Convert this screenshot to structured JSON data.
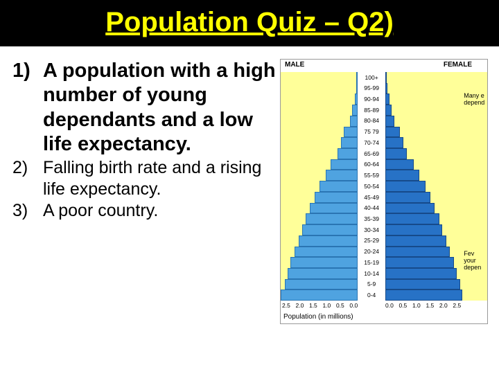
{
  "title": "Population Quiz – Q2)",
  "questions": [
    {
      "num": "1)",
      "text": "A population with a high number of young dependants and a low life expectancy.",
      "bold": true
    },
    {
      "num": "2)",
      "text": "Falling birth rate and a rising life expectancy.",
      "bold": false
    },
    {
      "num": "3)",
      "text": "A poor country.",
      "bold": false
    }
  ],
  "chart": {
    "male_label": "MALE",
    "female_label": "FEMALE",
    "side_text_top": "Many e\ndepend",
    "side_text_bot": "Fev\nyour\ndepen",
    "age_bands": [
      "100+",
      "95-99",
      "90-94",
      "85-89",
      "80-84",
      "75 79",
      "70-74",
      "65-69",
      "60-64",
      "55-59",
      "50-54",
      "45-49",
      "40-44",
      "35-39",
      "30-34",
      "25-29",
      "20-24",
      "15-19",
      "10-14",
      "5-9",
      "0-4"
    ],
    "male_pct": [
      1,
      2,
      4,
      7,
      10,
      18,
      22,
      26,
      35,
      42,
      50,
      56,
      62,
      68,
      72,
      77,
      82,
      87,
      91,
      95,
      100
    ],
    "female_pct": [
      2,
      3,
      5,
      8,
      12,
      19,
      23,
      28,
      37,
      44,
      52,
      58,
      64,
      70,
      74,
      79,
      84,
      89,
      93,
      97,
      100
    ],
    "x_ticks": [
      "2.5",
      "2.0",
      "1.5",
      "1.0",
      "0.5",
      "0.0"
    ],
    "x_label": "Population (in millions)",
    "colors": {
      "page_bg": "#ffffff",
      "title_bg": "#000000",
      "title_fg": "#ffff00",
      "chart_bg": "#ffff99",
      "male_bar": "#4fa3e0",
      "female_bar": "#2772c6"
    }
  }
}
